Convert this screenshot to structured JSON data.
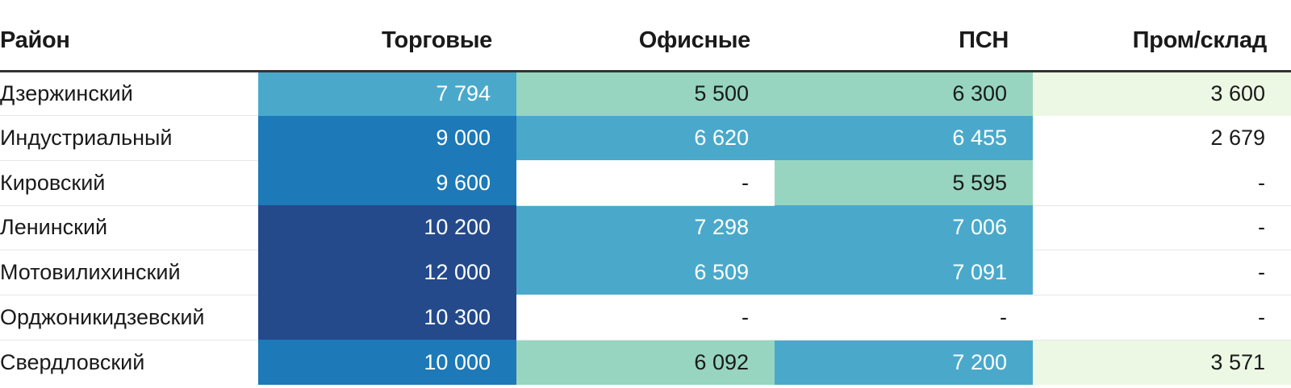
{
  "chart_data": {
    "type": "table",
    "columns": [
      "Район",
      "Торговые",
      "Офисные",
      "ПСН",
      "Пром/склад"
    ],
    "rows": [
      {
        "name": "Дзержинский",
        "values": [
          "7 794",
          "5 500",
          "6 300",
          "3 600"
        ],
        "nums": [
          7794,
          5500,
          6300,
          3600
        ]
      },
      {
        "name": "Индустриальный",
        "values": [
          "9 000",
          "6 620",
          "6 455",
          "2 679"
        ],
        "nums": [
          9000,
          6620,
          6455,
          2679
        ]
      },
      {
        "name": "Кировский",
        "values": [
          "9 600",
          "-",
          "5 595",
          "-"
        ],
        "nums": [
          9600,
          null,
          5595,
          null
        ]
      },
      {
        "name": "Ленинский",
        "values": [
          "10 200",
          "7 298",
          "7 006",
          "-"
        ],
        "nums": [
          10200,
          7298,
          7006,
          null
        ]
      },
      {
        "name": "Мотовилихинский",
        "values": [
          "12 000",
          "6 509",
          "7 091",
          "-"
        ],
        "nums": [
          12000,
          6509,
          7091,
          null
        ]
      },
      {
        "name": "Орджоникидзевский",
        "values": [
          "10 300",
          "-",
          "-",
          "-"
        ],
        "nums": [
          10300,
          null,
          null,
          null
        ]
      },
      {
        "name": "Свердловский",
        "values": [
          "10 000",
          "6 092",
          "7 200",
          "3 571"
        ],
        "nums": [
          10000,
          6092,
          7200,
          3571
        ]
      }
    ],
    "color_scale": {
      "thresholds": [
        3000,
        5000,
        6400,
        9000,
        10200
      ],
      "colors": [
        "#ffffff",
        "#edf8e4",
        "#97d5c0",
        "#4aa9cb",
        "#1d79b7",
        "#244a8c"
      ],
      "light_text": "#ffffff",
      "dark_text": "#1a1a1a"
    }
  }
}
